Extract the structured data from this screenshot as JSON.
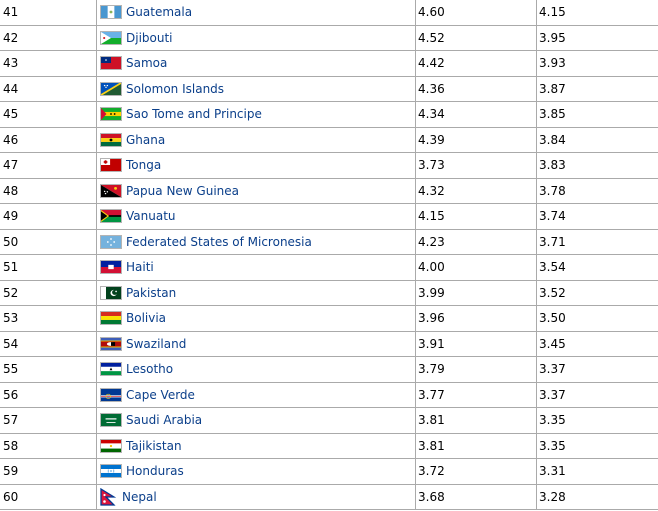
{
  "rows": [
    {
      "rank": "41",
      "country": "Guatemala",
      "flag": "guatemala-flag",
      "v1": "4.60",
      "v2": "4.15"
    },
    {
      "rank": "42",
      "country": "Djibouti",
      "flag": "djibouti-flag",
      "v1": "4.52",
      "v2": "3.95"
    },
    {
      "rank": "43",
      "country": "Samoa",
      "flag": "samoa-flag",
      "v1": "4.42",
      "v2": "3.93"
    },
    {
      "rank": "44",
      "country": "Solomon Islands",
      "flag": "solomon-islands-flag",
      "v1": "4.36",
      "v2": "3.87"
    },
    {
      "rank": "45",
      "country": "Sao Tome and Principe",
      "flag": "sao-tome-and-principe-flag",
      "v1": "4.34",
      "v2": "3.85"
    },
    {
      "rank": "46",
      "country": "Ghana",
      "flag": "ghana-flag",
      "v1": "4.39",
      "v2": "3.84"
    },
    {
      "rank": "47",
      "country": "Tonga",
      "flag": "tonga-flag",
      "v1": "3.73",
      "v2": "3.83"
    },
    {
      "rank": "48",
      "country": "Papua New Guinea",
      "flag": "papua-new-guinea-flag",
      "v1": "4.32",
      "v2": "3.78"
    },
    {
      "rank": "49",
      "country": "Vanuatu",
      "flag": "vanuatu-flag",
      "v1": "4.15",
      "v2": "3.74"
    },
    {
      "rank": "50",
      "country": "Federated States of Micronesia",
      "flag": "micronesia-flag",
      "v1": "4.23",
      "v2": "3.71"
    },
    {
      "rank": "51",
      "country": "Haiti",
      "flag": "haiti-flag",
      "v1": "4.00",
      "v2": "3.54"
    },
    {
      "rank": "52",
      "country": "Pakistan",
      "flag": "pakistan-flag",
      "v1": "3.99",
      "v2": "3.52"
    },
    {
      "rank": "53",
      "country": "Bolivia",
      "flag": "bolivia-flag",
      "v1": "3.96",
      "v2": "3.50"
    },
    {
      "rank": "54",
      "country": "Swaziland",
      "flag": "swaziland-flag",
      "v1": "3.91",
      "v2": "3.45"
    },
    {
      "rank": "55",
      "country": "Lesotho",
      "flag": "lesotho-flag",
      "v1": "3.79",
      "v2": "3.37"
    },
    {
      "rank": "56",
      "country": "Cape Verde",
      "flag": "cape-verde-flag",
      "v1": "3.77",
      "v2": "3.37"
    },
    {
      "rank": "57",
      "country": "Saudi Arabia",
      "flag": "saudi-arabia-flag",
      "v1": "3.81",
      "v2": "3.35"
    },
    {
      "rank": "58",
      "country": "Tajikistan",
      "flag": "tajikistan-flag",
      "v1": "3.81",
      "v2": "3.35"
    },
    {
      "rank": "59",
      "country": "Honduras",
      "flag": "honduras-flag",
      "v1": "3.72",
      "v2": "3.31"
    },
    {
      "rank": "60",
      "country": "Nepal",
      "flag": "nepal-flag",
      "v1": "3.68",
      "v2": "3.28"
    }
  ],
  "colors": {
    "link": "#0b3f8a",
    "border": "#aaaaaa"
  }
}
